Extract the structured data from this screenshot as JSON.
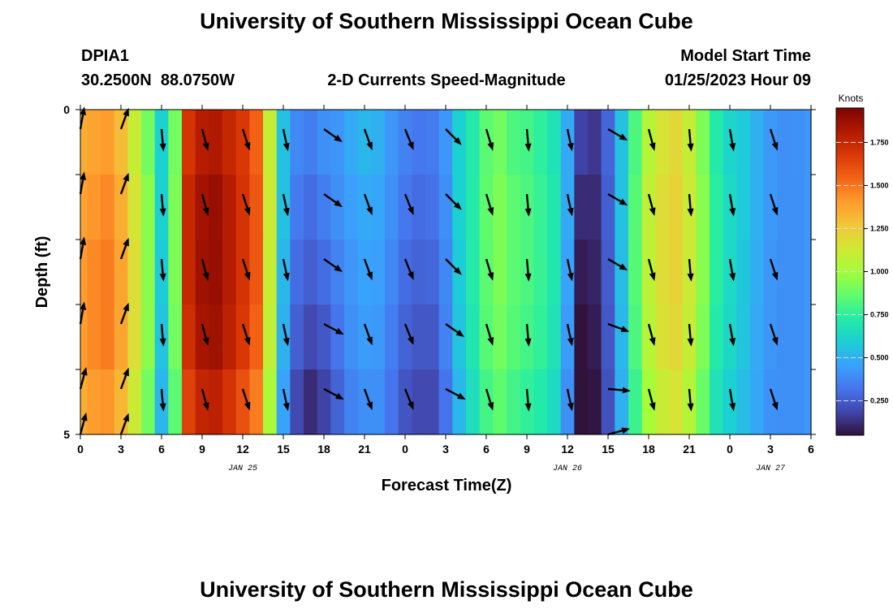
{
  "page": {
    "title": "University of Southern Mississippi Ocean Cube",
    "station": "DPIA1",
    "coordinates": "30.2500N  88.0750W",
    "plot_title": "2-D Currents Speed-Magnitude",
    "model_start_label": "Model Start Time",
    "model_start_value": "01/25/2023 Hour 09",
    "footer_title": "University of Southern Mississippi Ocean Cube"
  },
  "chart_data": {
    "type": "heatmap",
    "title": "2-D Currents Speed-Magnitude",
    "xlabel": "Forecast Time(Z)",
    "ylabel": "Depth (ft)",
    "x_tick_labels": [
      "0",
      "3",
      "6",
      "9",
      "12",
      "15",
      "18",
      "21",
      "0",
      "3",
      "6",
      "9",
      "12",
      "15",
      "18",
      "21",
      "0",
      "3",
      "6"
    ],
    "x_range_hours": [
      0,
      54
    ],
    "y_tick_labels": [
      "0",
      "5"
    ],
    "y_range_ft": [
      0,
      5
    ],
    "date_labels": [
      {
        "text": "JAN 25",
        "hour": 12
      },
      {
        "text": "JAN 26",
        "hour": 36
      },
      {
        "text": "JAN 27",
        "hour": 51
      }
    ],
    "colorbar": {
      "label": "Knots",
      "range": [
        0.05,
        1.95
      ],
      "ticks": [
        "0.250",
        "0.500",
        "0.750",
        "1.000",
        "1.250",
        "1.500",
        "1.750"
      ],
      "tick_values": [
        0.25,
        0.5,
        0.75,
        1.0,
        1.25,
        1.5,
        1.75
      ],
      "colors": [
        "#30123b",
        "#4145ab",
        "#4675ed",
        "#39a2fc",
        "#1bcfd4",
        "#24eca6",
        "#61fc6c",
        "#a4fc3b",
        "#d1e834",
        "#f3c63a",
        "#fe9b2d",
        "#f36315",
        "#d93806",
        "#b11901",
        "#7a0402"
      ]
    },
    "speed_hours": [
      0,
      1,
      2,
      3,
      4,
      5,
      6,
      7,
      8,
      9,
      10,
      11,
      12,
      13,
      14,
      15,
      16,
      17,
      18,
      19,
      20,
      21,
      22,
      23,
      24,
      25,
      26,
      27,
      28,
      29,
      30,
      31,
      32,
      33,
      34,
      35,
      36,
      37,
      38,
      39,
      40,
      41,
      42,
      43,
      44,
      45,
      46,
      47,
      48,
      49,
      50,
      51,
      52,
      53,
      54
    ],
    "speed_depth_rows_ft": [
      0.5,
      1.5,
      2.5,
      3.5,
      4.5
    ],
    "speed_knots": [
      [
        1.35,
        1.38,
        1.4,
        1.3,
        1.1,
        0.9,
        0.6,
        0.9,
        1.7,
        1.8,
        1.82,
        1.75,
        1.68,
        1.55,
        1.1,
        0.55,
        0.38,
        0.35,
        0.4,
        0.42,
        0.48,
        0.52,
        0.5,
        0.42,
        0.36,
        0.33,
        0.34,
        0.42,
        0.6,
        0.72,
        0.85,
        0.9,
        0.82,
        0.8,
        0.75,
        0.68,
        0.48,
        0.18,
        0.15,
        0.28,
        0.55,
        0.82,
        1.05,
        1.15,
        1.2,
        1.1,
        0.92,
        0.72,
        0.62,
        0.58,
        0.5,
        0.43,
        0.4,
        0.41,
        0.42
      ],
      [
        1.38,
        1.42,
        1.45,
        1.35,
        1.15,
        0.95,
        0.6,
        0.92,
        1.75,
        1.85,
        1.88,
        1.8,
        1.7,
        1.58,
        1.12,
        0.55,
        0.34,
        0.3,
        0.35,
        0.4,
        0.45,
        0.48,
        0.47,
        0.4,
        0.33,
        0.3,
        0.31,
        0.4,
        0.6,
        0.72,
        0.86,
        0.92,
        0.85,
        0.82,
        0.77,
        0.7,
        0.48,
        0.12,
        0.12,
        0.26,
        0.55,
        0.84,
        1.08,
        1.18,
        1.22,
        1.12,
        0.95,
        0.74,
        0.64,
        0.58,
        0.5,
        0.43,
        0.4,
        0.4,
        0.42
      ],
      [
        1.4,
        1.45,
        1.48,
        1.38,
        1.18,
        0.95,
        0.58,
        0.92,
        1.75,
        1.86,
        1.88,
        1.8,
        1.7,
        1.58,
        1.1,
        0.52,
        0.3,
        0.26,
        0.3,
        0.36,
        0.42,
        0.46,
        0.45,
        0.38,
        0.3,
        0.27,
        0.28,
        0.38,
        0.58,
        0.72,
        0.85,
        0.92,
        0.85,
        0.82,
        0.77,
        0.7,
        0.46,
        0.08,
        0.1,
        0.25,
        0.54,
        0.84,
        1.07,
        1.18,
        1.22,
        1.12,
        0.95,
        0.74,
        0.64,
        0.57,
        0.49,
        0.42,
        0.4,
        0.4,
        0.42
      ],
      [
        1.4,
        1.45,
        1.48,
        1.38,
        1.18,
        0.95,
        0.56,
        0.9,
        1.72,
        1.84,
        1.86,
        1.78,
        1.68,
        1.55,
        1.08,
        0.5,
        0.26,
        0.2,
        0.24,
        0.32,
        0.4,
        0.44,
        0.43,
        0.35,
        0.27,
        0.24,
        0.24,
        0.36,
        0.56,
        0.7,
        0.84,
        0.9,
        0.84,
        0.8,
        0.76,
        0.68,
        0.44,
        0.05,
        0.08,
        0.24,
        0.52,
        0.82,
        1.05,
        1.16,
        1.2,
        1.1,
        0.93,
        0.72,
        0.63,
        0.56,
        0.48,
        0.42,
        0.4,
        0.4,
        0.42
      ],
      [
        1.35,
        1.4,
        1.42,
        1.32,
        1.12,
        0.9,
        0.52,
        0.85,
        1.65,
        1.76,
        1.78,
        1.7,
        1.6,
        1.48,
        1.02,
        0.46,
        0.2,
        0.12,
        0.18,
        0.27,
        0.36,
        0.4,
        0.4,
        0.32,
        0.23,
        0.2,
        0.2,
        0.32,
        0.52,
        0.66,
        0.8,
        0.86,
        0.8,
        0.76,
        0.72,
        0.64,
        0.4,
        0.04,
        0.06,
        0.22,
        0.5,
        0.78,
        1.0,
        1.1,
        1.15,
        1.05,
        0.88,
        0.68,
        0.6,
        0.54,
        0.47,
        0.41,
        0.4,
        0.4,
        0.42
      ]
    ],
    "vector_hours": [
      0,
      3,
      6,
      9,
      12,
      15,
      18,
      21,
      24,
      27,
      30,
      33,
      36,
      39,
      42,
      45,
      48,
      51
    ],
    "vector_depth_ft": [
      0.3,
      1.3,
      2.3,
      3.3,
      4.3,
      5.0
    ],
    "vector_directions_deg": [
      [
        10,
        20,
        175,
        165,
        162,
        168,
        125,
        160,
        158,
        135,
        163,
        175,
        168,
        120,
        165,
        175,
        170,
        162
      ],
      [
        10,
        20,
        175,
        165,
        162,
        168,
        125,
        160,
        158,
        135,
        163,
        175,
        168,
        120,
        165,
        175,
        170,
        162
      ],
      [
        10,
        20,
        175,
        165,
        162,
        168,
        125,
        160,
        158,
        135,
        163,
        175,
        168,
        120,
        165,
        175,
        170,
        162
      ],
      [
        10,
        20,
        175,
        165,
        162,
        168,
        118,
        160,
        158,
        125,
        163,
        175,
        168,
        110,
        165,
        175,
        170,
        162
      ],
      [
        15,
        20,
        175,
        165,
        162,
        168,
        118,
        160,
        158,
        118,
        163,
        175,
        168,
        95,
        165,
        175,
        170,
        162
      ],
      [
        15,
        20,
        null,
        null,
        null,
        null,
        null,
        null,
        null,
        null,
        null,
        null,
        null,
        75,
        null,
        null,
        null,
        null
      ]
    ]
  }
}
